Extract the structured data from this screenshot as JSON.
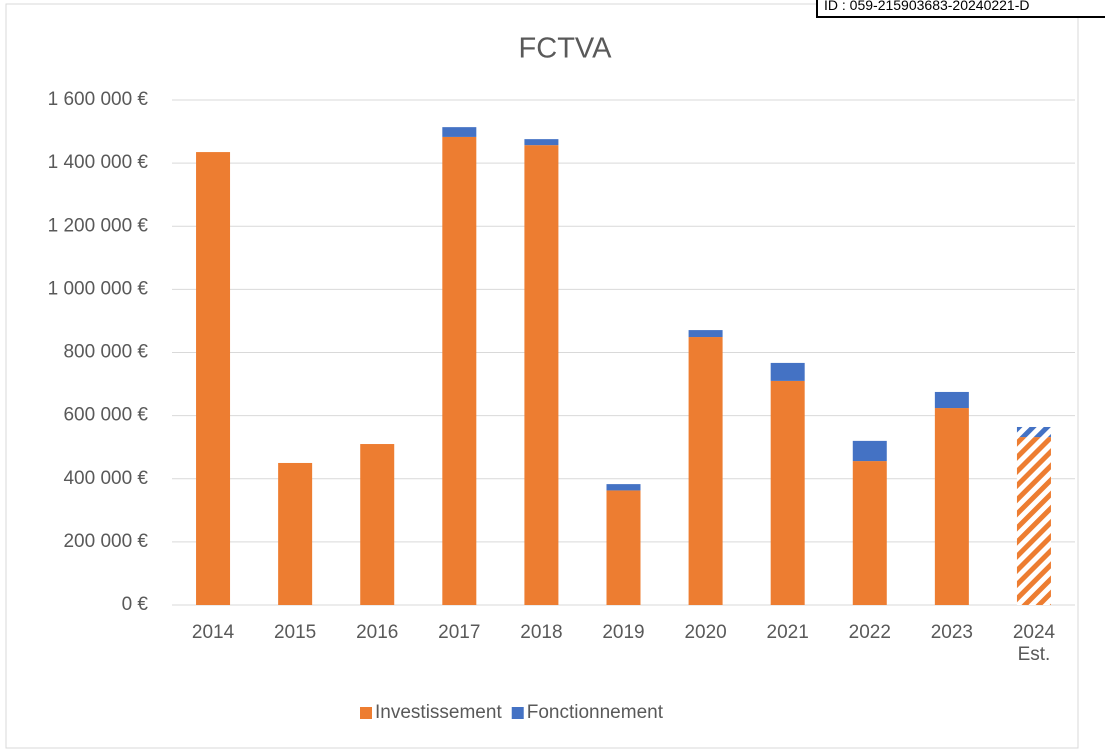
{
  "stamp": "ID : 059-215903683-20240221-D",
  "chart_data": {
    "type": "bar",
    "stacked": true,
    "title": "FCTVA",
    "categories": [
      "2014",
      "2015",
      "2016",
      "2017",
      "2018",
      "2019",
      "2020",
      "2021",
      "2022",
      "2023",
      "2024 Est."
    ],
    "series": [
      {
        "name": "Investissement",
        "color": "#ed7d31",
        "values": [
          1435000,
          450000,
          510000,
          1483000,
          1457000,
          363000,
          849000,
          710000,
          456000,
          624000,
          532000
        ]
      },
      {
        "name": "Fonctionnement",
        "color": "#4472c4",
        "values": [
          0,
          0,
          0,
          31000,
          19000,
          20000,
          22000,
          57000,
          64000,
          51000,
          32000
        ]
      }
    ],
    "hatched": "2024 Est.",
    "ylim": [
      0,
      1600000
    ],
    "yticks": [
      {
        "value": 0,
        "label": "0 €"
      },
      {
        "value": 200000,
        "label": "200 000 €"
      },
      {
        "value": 400000,
        "label": "400 000 €"
      },
      {
        "value": 600000,
        "label": "600 000 €"
      },
      {
        "value": 800000,
        "label": "800 000 €"
      },
      {
        "value": 1000000,
        "label": "1 000 000 €"
      },
      {
        "value": 1200000,
        "label": "1 200 000 €"
      },
      {
        "value": 1400000,
        "label": "1 400 000 €"
      },
      {
        "value": 1600000,
        "label": "1 600 000 €"
      }
    ],
    "grid": true,
    "legend": "bottom"
  }
}
